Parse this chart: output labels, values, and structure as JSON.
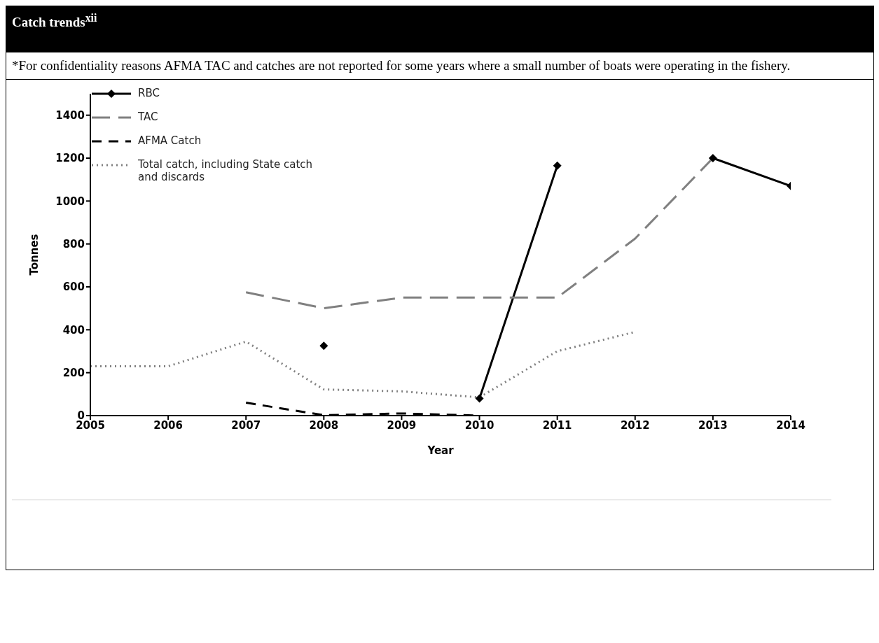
{
  "chart_data": {
    "type": "line",
    "title": "Catch trends$^{xii}$",
    "annotations": [
      "*For confidentiality reasons AFMA TAC and catches are not reported for some years where a small number of boats were operating in the fishery."
    ],
    "xlabel": "Year",
    "ylabel": "Tonnes",
    "x": [
      2005,
      2006,
      2007,
      2008,
      2009,
      2010,
      2011,
      2012,
      2013,
      2014
    ],
    "series": [
      {
        "name": "RBC",
        "color": "#000000",
        "marker": "diamond",
        "line_style": "solid",
        "values": [
          null,
          null,
          null,
          325,
          null,
          80,
          1165,
          null,
          1200,
          1070
        ]
      },
      {
        "name": "TAC",
        "color": "#808080",
        "marker": "none",
        "line_style": "longdash",
        "values": [
          null,
          null,
          575,
          500,
          550,
          550,
          550,
          825,
          1200,
          null
        ]
      },
      {
        "name": "AFMA Catch",
        "color": "#000000",
        "marker": "none",
        "line_style": "dashed",
        "values": [
          null,
          null,
          60,
          2,
          10,
          0,
          null,
          null,
          null,
          null
        ]
      },
      {
        "name": "Total catch, including State catch and discards",
        "color": "#808080",
        "marker": "none",
        "line_style": "dotted",
        "values": [
          230,
          230,
          345,
          122,
          113,
          85,
          300,
          390,
          null,
          null
        ]
      }
    ],
    "xlim": [
      2005,
      2014
    ],
    "xticks": [
      2005,
      2006,
      2007,
      2008,
      2009,
      2010,
      2011,
      2012,
      2013,
      2014
    ],
    "ylim": [
      0,
      1500
    ],
    "yticks": [
      0,
      200,
      400,
      600,
      800,
      1000,
      1200,
      1400
    ],
    "grid": false,
    "legend": "top left"
  }
}
